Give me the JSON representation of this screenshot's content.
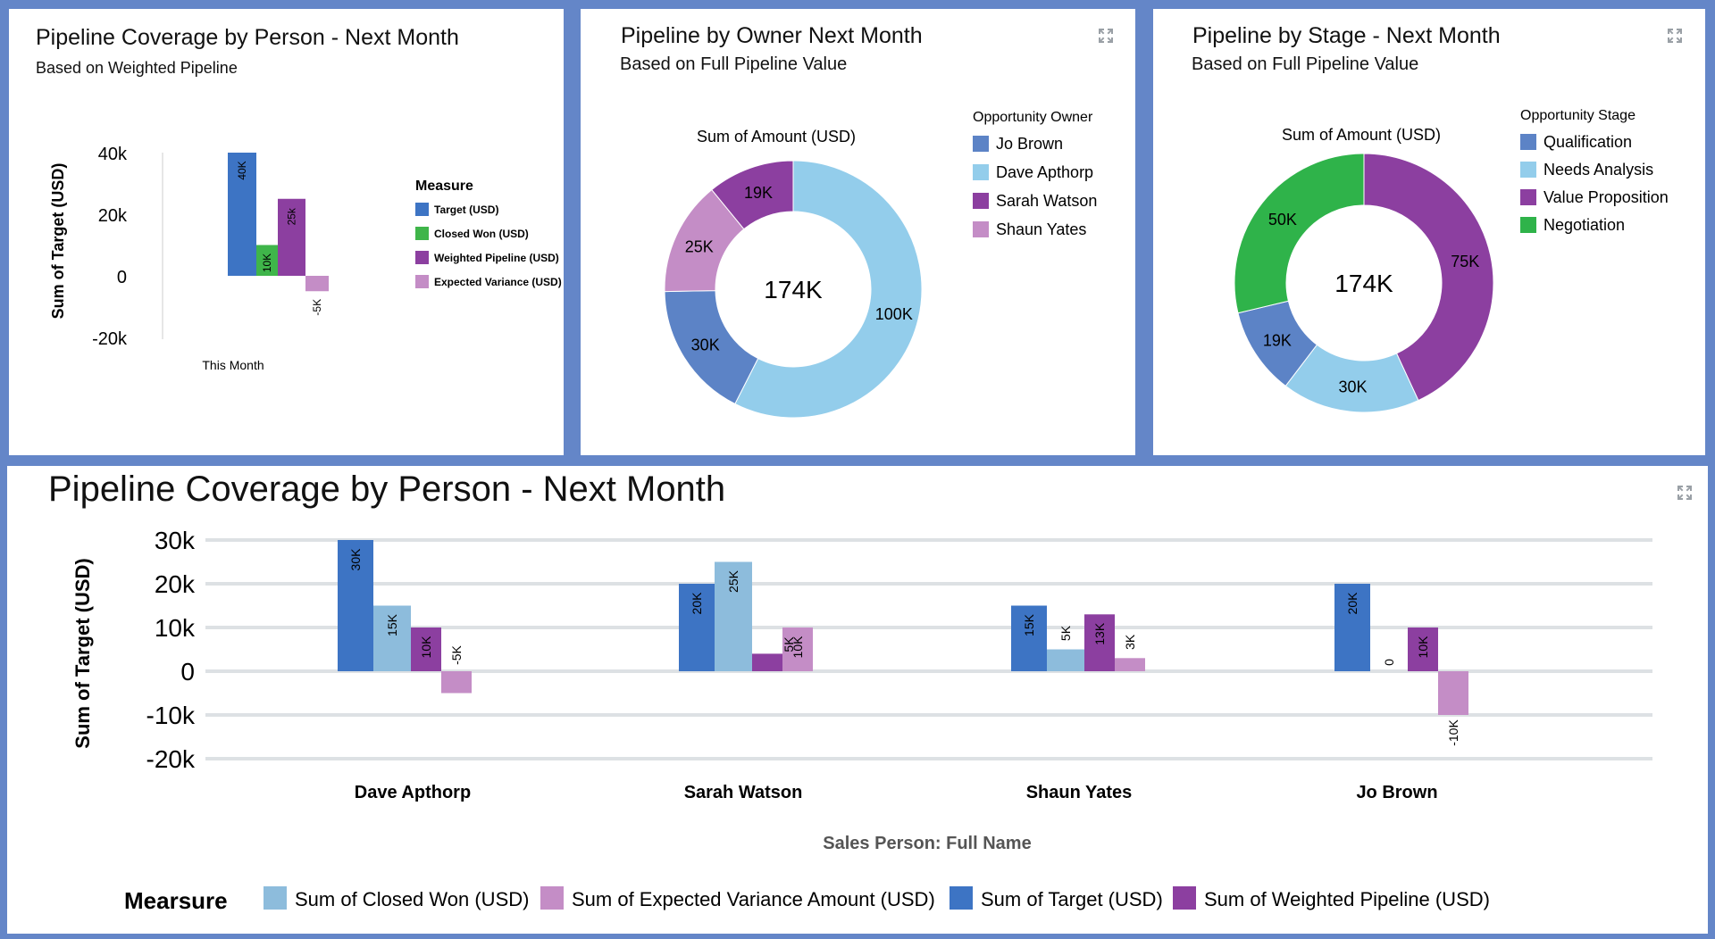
{
  "colors": {
    "target": "#3d74c4",
    "closed_won": "#3fb54a",
    "weighted": "#8c3fa0",
    "variance": "#c48dc6",
    "closed_won_bottom": "#8dbcdc",
    "jo": "#5c83c6",
    "dave": "#93cdeb",
    "sarah": "#8c3fa0",
    "shaun": "#c48dc6",
    "qual": "#5c83c6",
    "needs": "#93cdeb",
    "value": "#8c3fa0",
    "negotiation": "#2fb34a"
  },
  "panel1": {
    "title": "Pipeline Coverage by Person - Next Month",
    "subtitle": "Based on Weighted Pipeline",
    "chart_data": {
      "type": "bar",
      "categories": [
        "This Month"
      ],
      "ylabel": "Sum of Target (USD)",
      "ylim": [
        -20000,
        40000
      ],
      "yticks": [
        40000,
        20000,
        0,
        -20000
      ],
      "ytick_labels": [
        "40k",
        "20k",
        "0",
        "-20k"
      ],
      "legend_title": "Measure",
      "series": [
        {
          "name": "Target (USD)",
          "values": [
            40000
          ],
          "labels": [
            "40K"
          ],
          "color": "#3d74c4"
        },
        {
          "name": "Closed Won (USD)",
          "values": [
            10000
          ],
          "labels": [
            "10K"
          ],
          "color": "#3fb54a"
        },
        {
          "name": "Weighted Pipeline (USD)",
          "values": [
            25000
          ],
          "labels": [
            "25k"
          ],
          "color": "#8c3fa0"
        },
        {
          "name": "Expected Variance (USD)",
          "values": [
            -5000
          ],
          "labels": [
            "-5K"
          ],
          "color": "#c48dc6"
        }
      ]
    }
  },
  "panel2": {
    "title": "Pipeline by Owner Next Month",
    "subtitle": "Based on Full Pipeline Value",
    "chart_data": {
      "type": "pie",
      "measure_label": "Sum of Amount (USD)",
      "center_label": "174K",
      "legend_title": "Opportunity Owner",
      "slices": [
        {
          "name": "Dave Apthorp",
          "value": 100000,
          "label": "100K",
          "color": "#93cdeb"
        },
        {
          "name": "Jo Brown",
          "value": 30000,
          "label": "30K",
          "color": "#5c83c6"
        },
        {
          "name": "Shaun Yates",
          "value": 25000,
          "label": "25K",
          "color": "#c48dc6"
        },
        {
          "name": "Sarah Watson",
          "value": 19000,
          "label": "19K",
          "color": "#8c3fa0"
        }
      ],
      "legend_order": [
        "Jo Brown",
        "Dave Apthorp",
        "Sarah Watson",
        "Shaun Yates"
      ]
    }
  },
  "panel3": {
    "title": "Pipeline by Stage - Next Month",
    "subtitle": "Based on Full Pipeline Value",
    "chart_data": {
      "type": "pie",
      "measure_label": "Sum of Amount (USD)",
      "center_label": "174K",
      "legend_title": "Opportunity Stage",
      "slices": [
        {
          "name": "Value Proposition",
          "value": 75000,
          "label": "75K",
          "color": "#8c3fa0"
        },
        {
          "name": "Needs Analysis",
          "value": 30000,
          "label": "30K",
          "color": "#93cdeb"
        },
        {
          "name": "Qualification",
          "value": 19000,
          "label": "19K",
          "color": "#5c83c6"
        },
        {
          "name": "Negotiation",
          "value": 50000,
          "label": "50K",
          "color": "#2fb34a"
        }
      ],
      "legend_order": [
        "Qualification",
        "Needs Analysis",
        "Value Proposition",
        "Negotiation"
      ]
    }
  },
  "panel4": {
    "title": "Pipeline Coverage by Person - Next Month",
    "chart_data": {
      "type": "bar",
      "categories": [
        "Dave Apthorp",
        "Sarah Watson",
        "Shaun Yates",
        "Jo Brown"
      ],
      "xlabel": "Sales Person: Full Name",
      "ylabel": "Sum of Target (USD)",
      "ylim": [
        -20000,
        30000
      ],
      "yticks": [
        30000,
        20000,
        10000,
        0,
        -10000,
        -20000
      ],
      "ytick_labels": [
        "30k",
        "20k",
        "10k",
        "0",
        "-10k",
        "-20k"
      ],
      "legend_title": "Mearsure",
      "series": [
        {
          "name": "Sum of Target (USD)",
          "values": [
            30000,
            20000,
            15000,
            20000
          ],
          "labels": [
            "30K",
            "20K",
            "15K",
            "20K"
          ],
          "color": "#3d74c4"
        },
        {
          "name": "Sum of Closed Won (USD)",
          "values": [
            15000,
            25000,
            5000,
            0
          ],
          "labels": [
            "15K",
            "25K",
            "5K",
            "0"
          ],
          "color": "#8dbcdc"
        },
        {
          "name": "Sum of Weighted Pipeline (USD)",
          "values": [
            10000,
            4000,
            13000,
            10000
          ],
          "labels": [
            "10K",
            "",
            "13K",
            "10K"
          ],
          "color": "#8c3fa0"
        },
        {
          "name": "Sum of Expected Variance Amount (USD)",
          "values": [
            -5000,
            10000,
            3000,
            -10000
          ],
          "labels": [
            "-5K",
            "10K",
            "3K",
            "-10K"
          ],
          "color": "#c48dc6"
        }
      ],
      "extra_labels": [
        "5K"
      ],
      "legend_order": [
        "Sum of Closed Won (USD)",
        "Sum of Expected Variance Amount (USD)",
        "Sum of Target (USD)",
        "Sum of Weighted Pipeline (USD)"
      ]
    }
  }
}
